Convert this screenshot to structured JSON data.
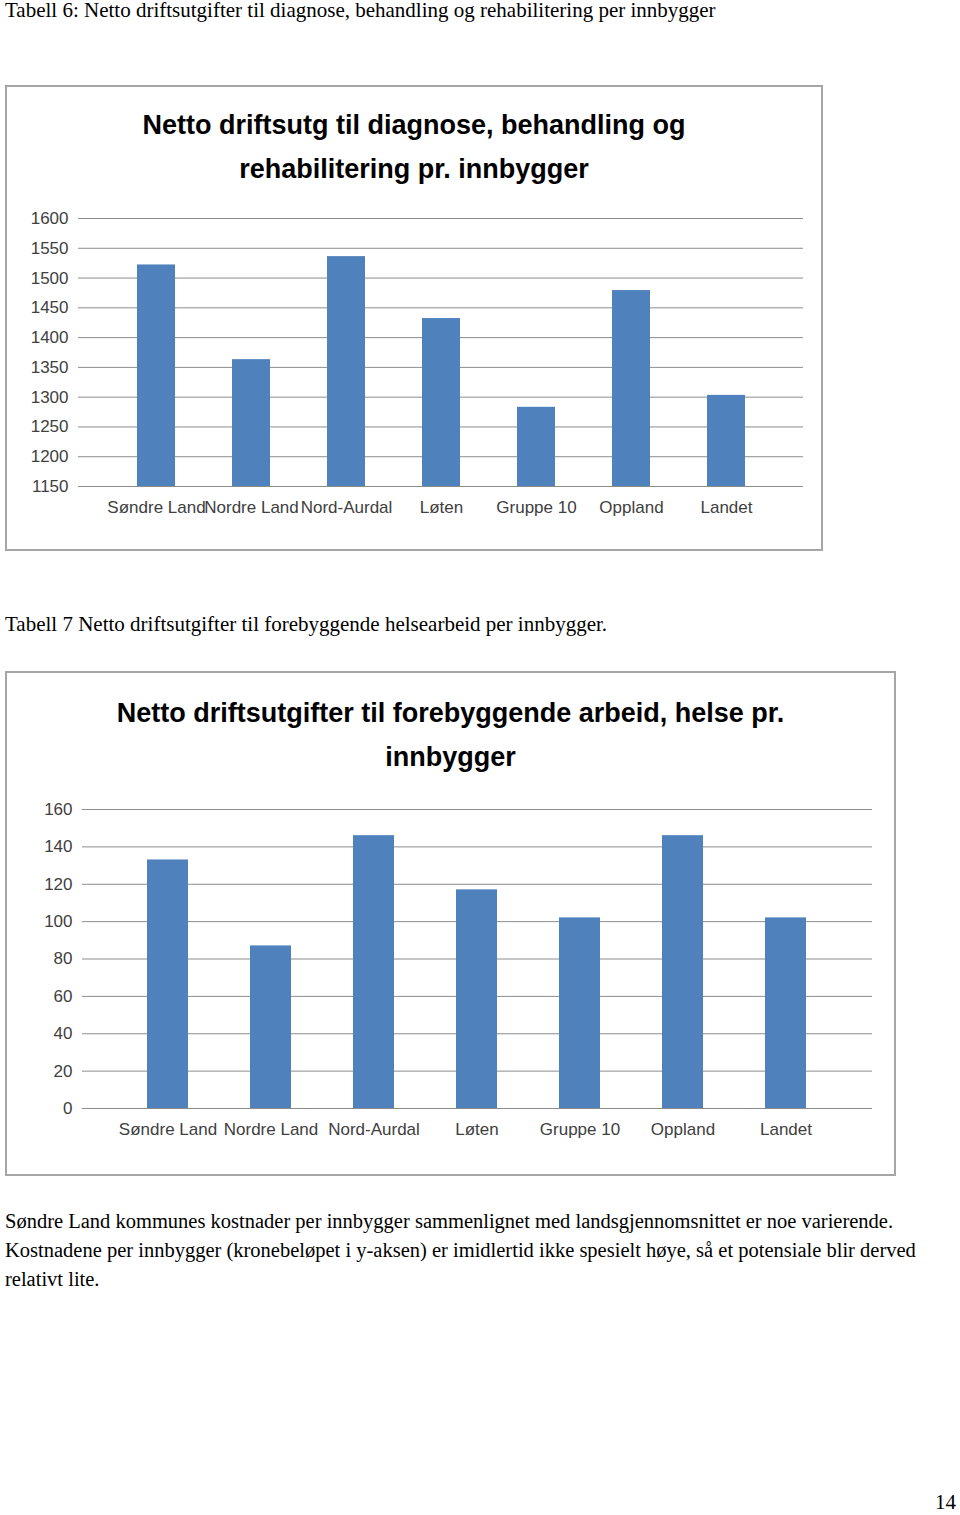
{
  "document": {
    "captions": [
      "Tabell 6: Netto driftsutgifter til diagnose, behandling og rehabilitering per innbygger",
      "Tabell 7 Netto driftsutgifter til forebyggende helsearbeid per innbygger."
    ],
    "paragraph": "Søndre Land kommunes kostnader per innbygger sammenlignet med landsgjennomsnittet er noe varierende. Kostnadene per innbygger (kronebeløpet i y-aksen) er imidlertid ikke spesielt høye, så et potensiale blir derved relativt lite.",
    "page_number": 14
  },
  "chart_data": [
    {
      "type": "bar",
      "title": "Netto driftsutg til diagnose, behandling og rehabilitering pr. innbygger",
      "categories": [
        "Søndre Land",
        "Nordre Land",
        "Nord-Aurdal",
        "Løten",
        "Gruppe 10",
        "Oppland",
        "Landet"
      ],
      "values": [
        1522,
        1363,
        1536,
        1432,
        1283,
        1479,
        1303
      ],
      "color": "#4f81bd",
      "ylim": [
        1150,
        1600
      ],
      "yticks": [
        1150,
        1200,
        1250,
        1300,
        1350,
        1400,
        1450,
        1500,
        1550,
        1600
      ],
      "grid": true
    },
    {
      "type": "bar",
      "title": "Netto driftsutgifter til forebyggende arbeid, helse pr. innbygger",
      "categories": [
        "Søndre Land",
        "Nordre Land",
        "Nord-Aurdal",
        "Løten",
        "Gruppe 10",
        "Oppland",
        "Landet"
      ],
      "values": [
        133,
        87,
        146,
        117,
        102,
        146,
        102
      ],
      "color": "#4f81bd",
      "ylim": [
        0,
        160
      ],
      "yticks": [
        0,
        20,
        40,
        60,
        80,
        100,
        120,
        140,
        160
      ],
      "grid": true
    }
  ]
}
